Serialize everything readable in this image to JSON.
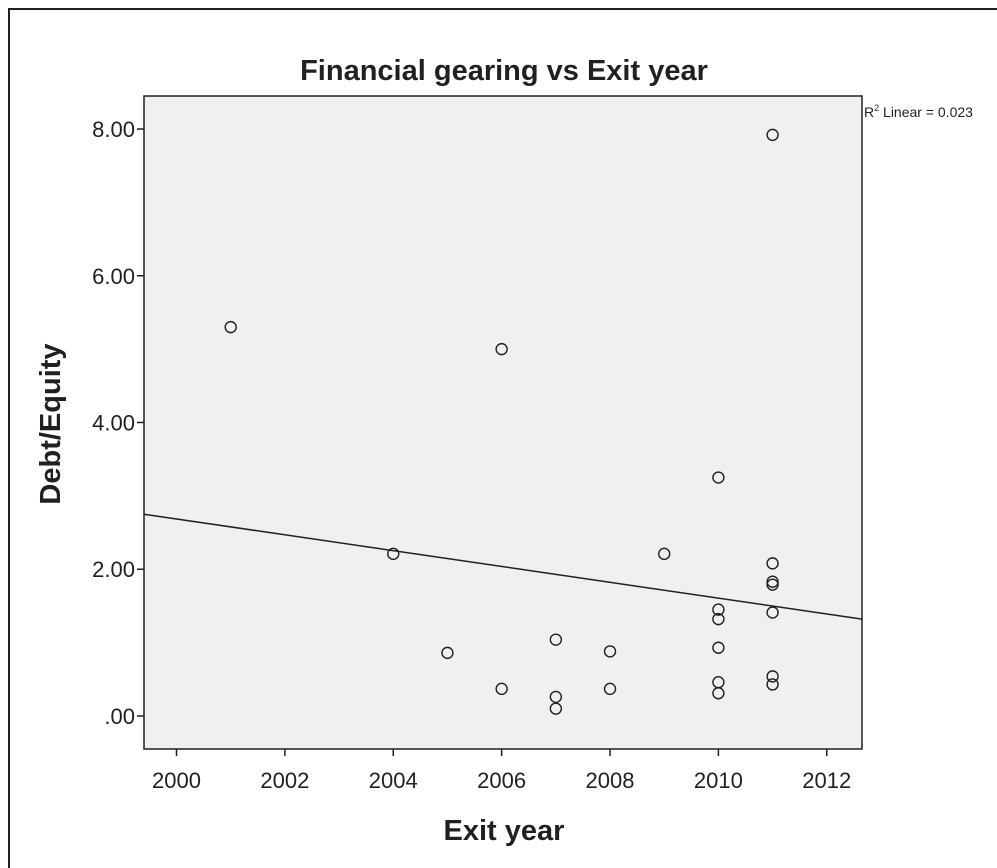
{
  "chart_data": {
    "type": "scatter",
    "title": "Financial gearing vs Exit year",
    "xlabel": "Exit year",
    "ylabel": "Debt/Equity",
    "xlim": [
      1999.4,
      2012.65
    ],
    "ylim": [
      -0.45,
      8.45
    ],
    "x_ticks": [
      2000,
      2002,
      2004,
      2006,
      2008,
      2010,
      2012
    ],
    "x_tick_labels": [
      "2000",
      "2002",
      "2004",
      "2006",
      "2008",
      "2010",
      "2012"
    ],
    "y_ticks": [
      0,
      2,
      4,
      6,
      8
    ],
    "y_tick_labels": [
      ".00",
      "2.00",
      "4.00",
      "6.00",
      "8.00"
    ],
    "grid": false,
    "annotation": {
      "r_symbol": "R",
      "superscript": "2",
      "text": " Linear = 0.023"
    },
    "fit_line": {
      "x": [
        1999.4,
        2012.65
      ],
      "y": [
        2.75,
        1.32
      ]
    },
    "points": [
      {
        "x": 2001,
        "y": 5.3
      },
      {
        "x": 2004,
        "y": 2.21
      },
      {
        "x": 2005,
        "y": 0.86
      },
      {
        "x": 2006,
        "y": 5.0
      },
      {
        "x": 2006,
        "y": 0.37
      },
      {
        "x": 2007,
        "y": 1.04
      },
      {
        "x": 2007,
        "y": 0.26
      },
      {
        "x": 2007,
        "y": 0.1
      },
      {
        "x": 2008,
        "y": 0.88
      },
      {
        "x": 2008,
        "y": 0.37
      },
      {
        "x": 2009,
        "y": 2.21
      },
      {
        "x": 2010,
        "y": 3.25
      },
      {
        "x": 2010,
        "y": 1.45
      },
      {
        "x": 2010,
        "y": 1.32
      },
      {
        "x": 2010,
        "y": 0.93
      },
      {
        "x": 2010,
        "y": 0.46
      },
      {
        "x": 2010,
        "y": 0.31
      },
      {
        "x": 2011,
        "y": 7.92
      },
      {
        "x": 2011,
        "y": 2.08
      },
      {
        "x": 2011,
        "y": 1.83
      },
      {
        "x": 2011,
        "y": 1.79
      },
      {
        "x": 2011,
        "y": 1.41
      },
      {
        "x": 2011,
        "y": 0.54
      },
      {
        "x": 2011,
        "y": 0.43
      }
    ]
  }
}
